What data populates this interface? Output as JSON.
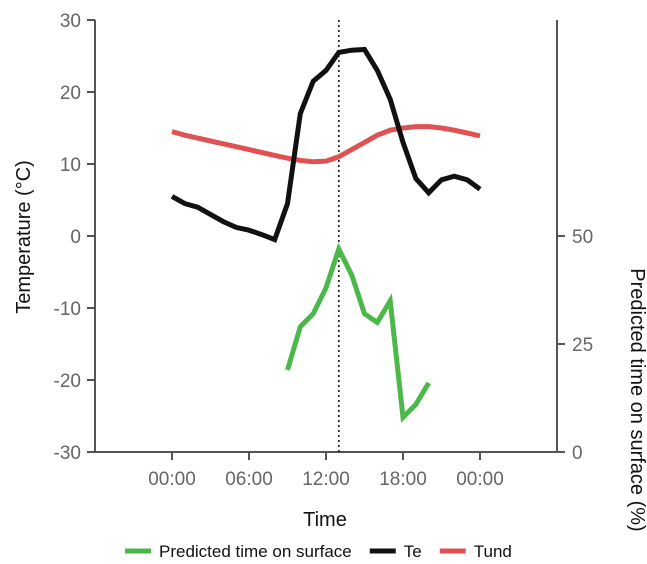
{
  "chart_data": {
    "type": "line",
    "xlabel": "Time",
    "ylabel_left": "Temperature (°C)",
    "ylabel_right": "Predicted time on surface (%)",
    "x_ticks": [
      "00:00",
      "06:00",
      "12:00",
      "18:00",
      "00:00"
    ],
    "x_range_hours": [
      -6,
      30
    ],
    "y_left": {
      "min": -30,
      "max": 30,
      "ticks": [
        -30,
        -20,
        -10,
        0,
        10,
        20,
        30
      ]
    },
    "y_right": {
      "min": 0,
      "max": 100,
      "ticks": [
        0,
        25,
        50
      ]
    },
    "marker_line_hour": 13,
    "series": [
      {
        "name": "Predicted time on surface",
        "axis": "right",
        "color": "#4cb84a",
        "x": [
          9,
          10,
          11,
          12,
          13,
          14,
          15,
          16,
          17,
          18,
          19,
          20
        ],
        "y": [
          19,
          29,
          32,
          38,
          47,
          41,
          32,
          30,
          35,
          8,
          11,
          16
        ]
      },
      {
        "name": "Te",
        "axis": "left",
        "color": "#111111",
        "x": [
          0,
          1,
          2,
          3,
          4,
          5,
          6,
          7,
          8,
          9,
          10,
          11,
          12,
          13,
          14,
          15,
          16,
          17,
          18,
          19,
          20,
          21,
          22,
          23,
          24
        ],
        "y": [
          5.5,
          4.5,
          4.0,
          3.0,
          2.0,
          1.2,
          0.8,
          0.2,
          -0.5,
          4.5,
          17.0,
          21.5,
          23.0,
          25.5,
          25.8,
          25.9,
          23.0,
          19.0,
          13.0,
          8.0,
          6.0,
          7.8,
          8.3,
          7.8,
          6.5
        ]
      },
      {
        "name": "Tund",
        "axis": "left",
        "color": "#e05252",
        "x": [
          0,
          1,
          2,
          3,
          4,
          5,
          6,
          7,
          8,
          9,
          10,
          11,
          12,
          13,
          14,
          15,
          16,
          17,
          18,
          19,
          20,
          21,
          22,
          23,
          24
        ],
        "y": [
          14.5,
          14.0,
          13.6,
          13.2,
          12.8,
          12.4,
          12.0,
          11.6,
          11.2,
          10.8,
          10.5,
          10.3,
          10.4,
          11.0,
          12.0,
          13.0,
          14.0,
          14.7,
          15.0,
          15.2,
          15.2,
          15.0,
          14.7,
          14.3,
          13.9
        ]
      }
    ],
    "legend": [
      "Predicted time on surface",
      "Te",
      "Tund"
    ],
    "legend_position": "bottom",
    "grid": false
  }
}
